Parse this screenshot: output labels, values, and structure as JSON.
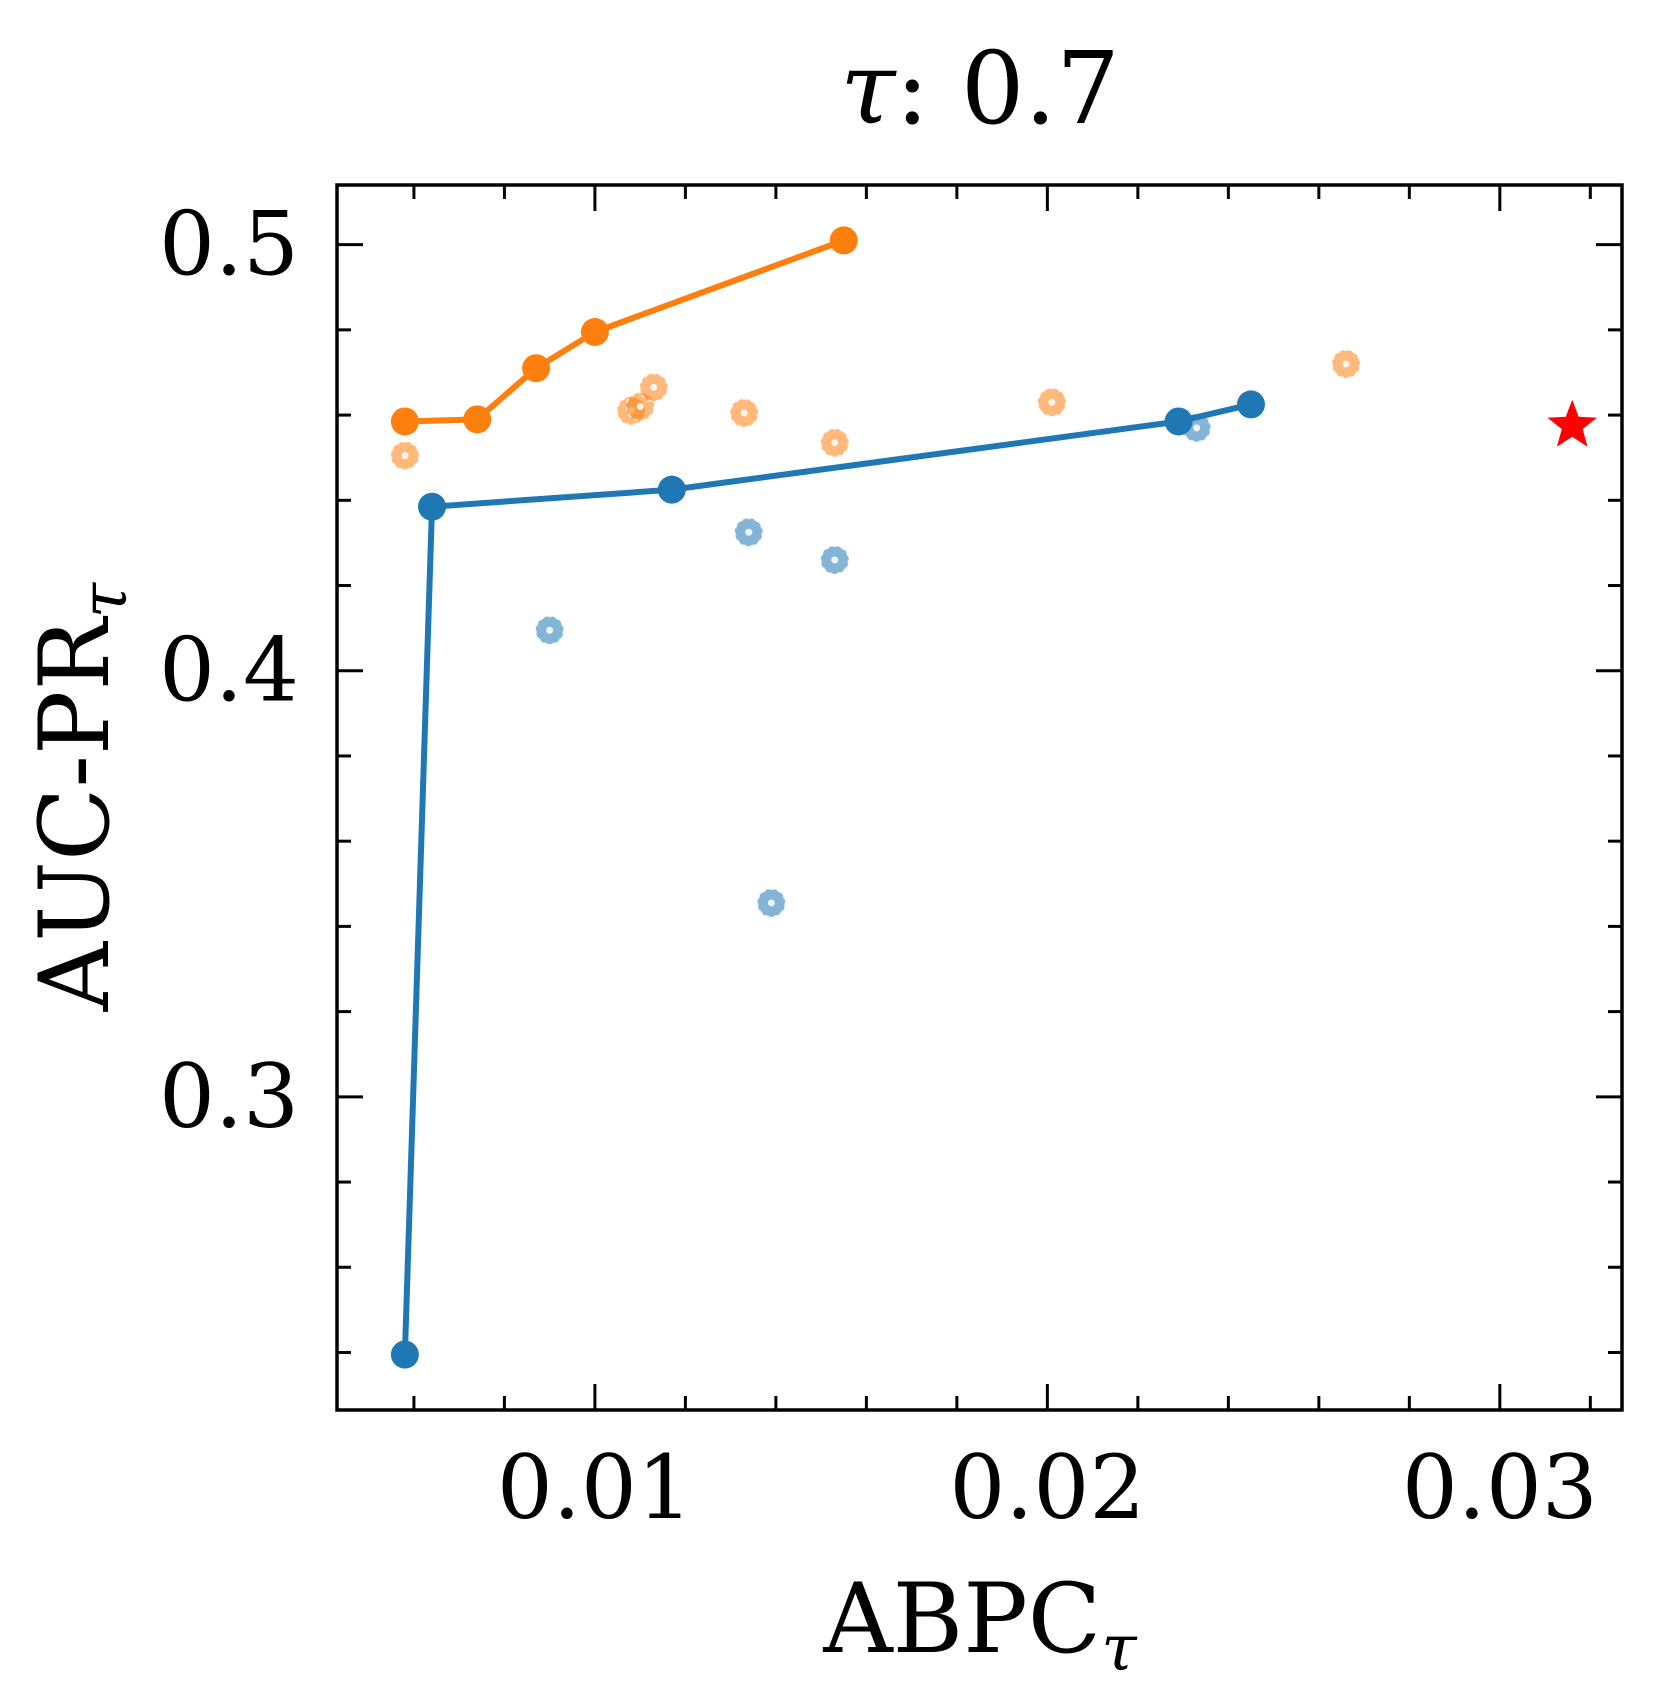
{
  "chart_data": {
    "type": "scatter",
    "title": "τ: 0.7",
    "title_parts": {
      "symbol": "τ",
      "rest": ": 0.7"
    },
    "xlabel": "ABPC_τ",
    "xlabel_parts": {
      "main": "ABPC",
      "sub": "τ"
    },
    "ylabel": "AUC-PR_τ",
    "ylabel_parts": {
      "main": "AUC-PR",
      "sub": "τ"
    },
    "xlim": [
      0.0043,
      0.0327
    ],
    "ylim": [
      0.2265,
      0.514
    ],
    "x_ticks": [
      0.01,
      0.02,
      0.03
    ],
    "x_tick_labels": [
      "0.01",
      "0.02",
      "0.03"
    ],
    "y_ticks": [
      0.3,
      0.4,
      0.5
    ],
    "y_tick_labels": [
      "0.3",
      "0.4",
      "0.5"
    ],
    "x_minor_step": 0.002,
    "y_minor_step": 0.02,
    "grid": false,
    "colors": {
      "blue": "#1f77b4",
      "orange": "#ff7f0e",
      "star": "#ff0000",
      "axis": "#000000"
    },
    "series": [
      {
        "name": "orange-frontier",
        "color": "#ff7f0e",
        "kind": "line",
        "x": [
          0.0058,
          0.0074,
          0.0087,
          0.01,
          0.0155
        ],
        "y": [
          0.4585,
          0.459,
          0.471,
          0.4795,
          0.501
        ]
      },
      {
        "name": "orange-points",
        "color": "#ff7f0e",
        "kind": "faded",
        "x": [
          0.0058,
          0.0108,
          0.011,
          0.0113,
          0.0133,
          0.0153,
          0.0201,
          0.0266
        ],
        "y": [
          0.4505,
          0.461,
          0.462,
          0.4665,
          0.4605,
          0.4535,
          0.463,
          0.472
        ]
      },
      {
        "name": "blue-frontier",
        "color": "#1f77b4",
        "kind": "line",
        "x": [
          0.0058,
          0.0064,
          0.0117,
          0.0229,
          0.0245
        ],
        "y": [
          0.2395,
          0.4385,
          0.4425,
          0.4585,
          0.4625
        ]
      },
      {
        "name": "blue-points",
        "color": "#1f77b4",
        "kind": "faded",
        "x": [
          0.009,
          0.0134,
          0.0139,
          0.0153,
          0.0233
        ],
        "y": [
          0.4095,
          0.4325,
          0.3455,
          0.426,
          0.457
        ]
      },
      {
        "name": "reference-star",
        "color": "#ff0000",
        "kind": "star",
        "x": [
          0.0316
        ],
        "y": [
          0.4575
        ]
      }
    ]
  }
}
